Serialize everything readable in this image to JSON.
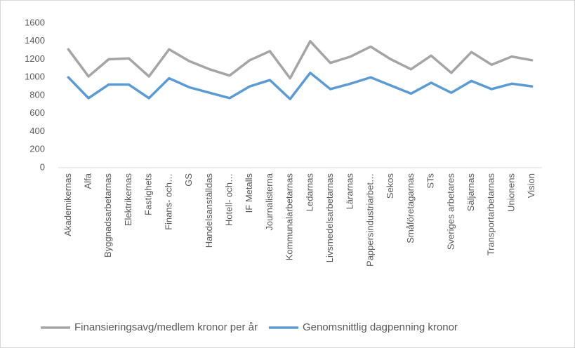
{
  "chart_data": {
    "type": "line",
    "categories": [
      "Akademikernas",
      "Alfa",
      "Byggnadsarbetarnas",
      "Elektrikernas",
      "Fastighets",
      "Finans- och…",
      "GS",
      "Handelsanställdas",
      "Hotell- och…",
      "IF Metalls",
      "Journalisterna",
      "Kommunalarbetarnas",
      "Ledarnas",
      "Livsmedelsarbetarnas",
      "Lärarnas",
      "Pappersindustriarbet…",
      "Sekos",
      "Småföretagarnas",
      "STs",
      "Sveriges arbetares",
      "Säljarnas",
      "Transportarbetarnas",
      "Unionens",
      "Vision"
    ],
    "series": [
      {
        "name": "Finansieringsavg/medlem kronor per år",
        "color": "#a5a5a5",
        "values": [
          1310,
          1010,
          1200,
          1210,
          1010,
          1310,
          1180,
          1090,
          1020,
          1190,
          1290,
          990,
          1400,
          1160,
          1230,
          1340,
          1200,
          1090,
          1240,
          1050,
          1280,
          1140,
          1230,
          1190
        ]
      },
      {
        "name": "Genomsnittlig dagpenning kronor",
        "color": "#5b9bd5",
        "values": [
          1000,
          770,
          920,
          920,
          770,
          990,
          890,
          830,
          770,
          900,
          970,
          760,
          1050,
          870,
          930,
          1000,
          910,
          820,
          940,
          830,
          960,
          870,
          930,
          900
        ]
      }
    ],
    "ylim": [
      0,
      1600
    ],
    "yticks": [
      0,
      200,
      400,
      600,
      800,
      1000,
      1200,
      1400,
      1600
    ],
    "grid": false,
    "legend": "bottom"
  }
}
